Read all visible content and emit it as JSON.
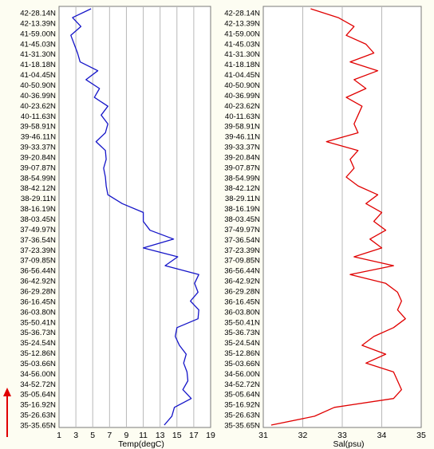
{
  "colors": {
    "background": "#fdfdf2",
    "plot_background": "#ffffff",
    "grid": "#b8b8b8",
    "temp_line": "#1414c8",
    "sal_line": "#e00000",
    "arrow": "#e00000"
  },
  "direction_arrow": "red upward arrow",
  "chart_data": [
    {
      "type": "line",
      "title": "",
      "xlabel": "Temp(degC)",
      "ylabel": "",
      "orientation": "vertical-profile",
      "grid": "vertical lines only",
      "xlim": [
        1,
        19
      ],
      "x_ticks": [
        "1",
        "3",
        "5",
        "7",
        "9",
        "11",
        "13",
        "15",
        "17",
        "19"
      ],
      "y_ticks": [
        "42-28.14N",
        "42-13.39N",
        "41-59.00N",
        "41-45.03N",
        "41-31.30N",
        "41-18.18N",
        "41-04.45N",
        "40-50.90N",
        "40-36.99N",
        "40-23.62N",
        "40-11.63N",
        "39-58.91N",
        "39-46.11N",
        "39-33.37N",
        "39-20.84N",
        "39-07.87N",
        "38-54.99N",
        "38-42.12N",
        "38-29.11N",
        "38-16.19N",
        "38-03.45N",
        "37-49.97N",
        "37-36.54N",
        "37-23.39N",
        "37-09.85N",
        "36-56.44N",
        "36-42.92N",
        "36-29.28N",
        "36-16.45N",
        "36-03.80N",
        "35-50.41N",
        "35-36.73N",
        "35-24.54N",
        "35-12.86N",
        "35-03.66N",
        "34-56.00N",
        "34-52.72N",
        "35-05.64N",
        "35-16.92N",
        "35-26.63N",
        "35-35.65N"
      ],
      "series": [
        {
          "color": "#1414c8",
          "values": [
            4.8,
            2.6,
            3.6,
            2.4,
            2.8,
            3.2,
            3.5,
            5.6,
            4.2,
            5.8,
            5.2,
            6.8,
            6.0,
            6.8,
            6.5,
            5.4,
            6.5,
            6.6,
            6.3,
            6.5,
            6.6,
            6.8,
            8.5,
            11.0,
            11.0,
            11.8,
            14.6,
            11.0,
            15.1,
            13.6,
            17.6,
            17.1,
            17.5,
            16.6,
            17.6,
            17.5,
            15.0,
            14.8,
            15.3,
            16.1,
            15.8,
            16.2,
            16.3,
            15.7,
            16.7,
            14.7,
            14.4,
            13.5
          ]
        }
      ]
    },
    {
      "type": "line",
      "title": "",
      "xlabel": "Sal(psu)",
      "ylabel": "",
      "orientation": "vertical-profile",
      "grid": "vertical lines only",
      "xlim": [
        31,
        35
      ],
      "x_ticks": [
        "31",
        "32",
        "33",
        "34",
        "35"
      ],
      "y_ticks": [
        "42-28.14N",
        "42-13.39N",
        "41-59.00N",
        "41-45.03N",
        "41-31.30N",
        "41-18.18N",
        "41-04.45N",
        "40-50.90N",
        "40-36.99N",
        "40-23.62N",
        "40-11.63N",
        "39-58.91N",
        "39-46.11N",
        "39-33.37N",
        "39-20.84N",
        "39-07.87N",
        "38-54.99N",
        "38-42.12N",
        "38-29.11N",
        "38-16.19N",
        "38-03.45N",
        "37-49.97N",
        "37-36.54N",
        "37-23.39N",
        "37-09.85N",
        "36-56.44N",
        "36-42.92N",
        "36-29.28N",
        "36-16.45N",
        "36-03.80N",
        "35-50.41N",
        "35-36.73N",
        "35-24.54N",
        "35-12.86N",
        "35-03.66N",
        "34-56.00N",
        "34-52.72N",
        "35-05.64N",
        "35-16.92N",
        "35-26.63N",
        "35-35.65N"
      ],
      "series": [
        {
          "color": "#e00000",
          "values": [
            32.2,
            32.9,
            33.3,
            33.1,
            33.6,
            33.8,
            33.2,
            33.9,
            33.3,
            33.6,
            33.1,
            33.5,
            33.4,
            33.3,
            33.4,
            32.6,
            33.4,
            33.2,
            33.3,
            33.1,
            33.4,
            33.9,
            33.6,
            34.0,
            33.8,
            34.1,
            33.7,
            34.0,
            33.3,
            34.3,
            33.2,
            34.1,
            34.4,
            34.5,
            34.4,
            34.6,
            34.3,
            33.8,
            33.5,
            34.1,
            33.6,
            34.3,
            34.4,
            34.5,
            34.3,
            32.8,
            32.3,
            31.2
          ]
        }
      ]
    }
  ]
}
